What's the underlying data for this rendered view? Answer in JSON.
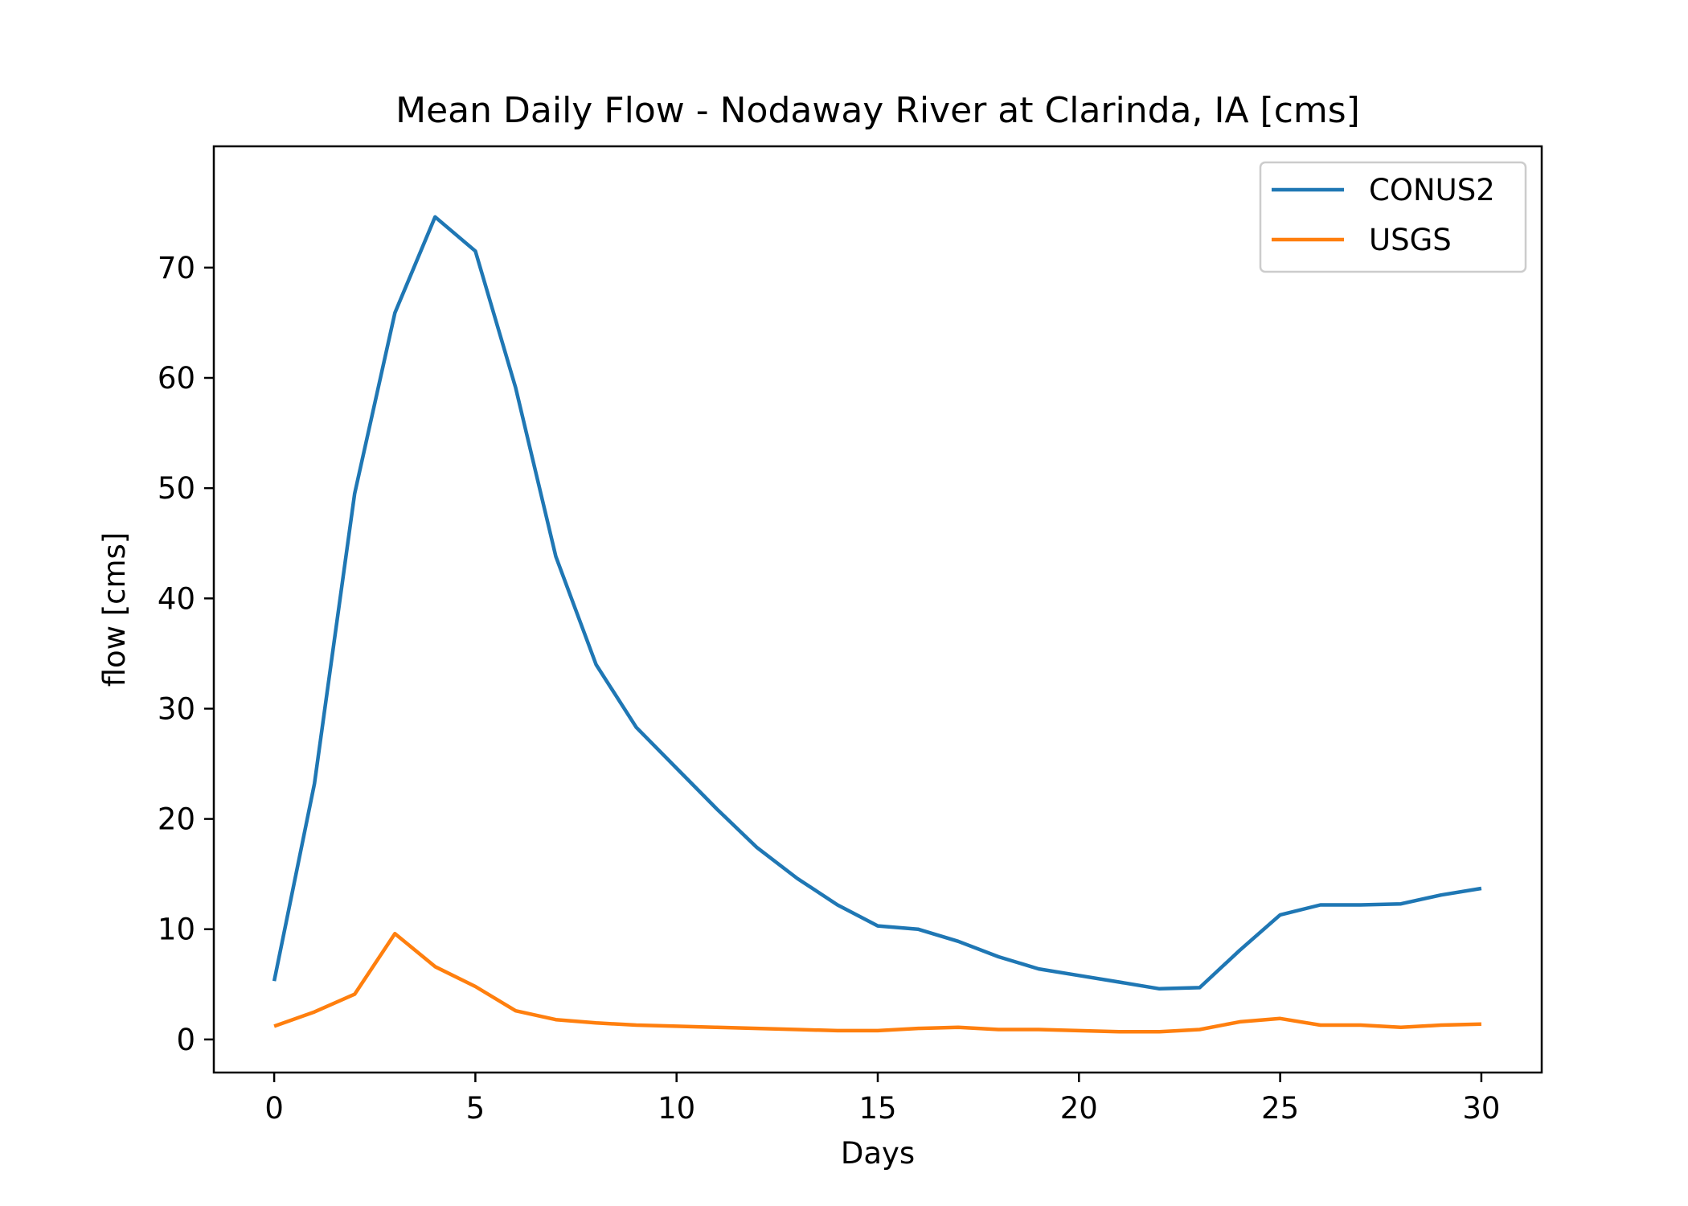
{
  "chart_data": {
    "type": "line",
    "title": "Mean Daily Flow - Nodaway River at Clarinda, IA [cms]",
    "xlabel": "Days",
    "ylabel": "flow [cms]",
    "xlim": [
      -1.5,
      31.5
    ],
    "ylim": [
      -3,
      81
    ],
    "xticks": [
      0,
      5,
      10,
      15,
      20,
      25,
      30
    ],
    "yticks": [
      0,
      10,
      20,
      30,
      40,
      50,
      60,
      70
    ],
    "grid": false,
    "legend_position": "top-right",
    "x": [
      0,
      1,
      2,
      3,
      4,
      5,
      6,
      7,
      8,
      9,
      10,
      11,
      12,
      13,
      14,
      15,
      16,
      17,
      18,
      19,
      20,
      21,
      22,
      23,
      24,
      25,
      26,
      27,
      28,
      29,
      30
    ],
    "series": [
      {
        "name": "CONUS2",
        "color": "#1f77b4",
        "values": [
          5.3,
          23.2,
          49.5,
          65.9,
          74.6,
          71.5,
          59.1,
          43.8,
          34.0,
          28.3,
          24.6,
          20.9,
          17.4,
          14.6,
          12.2,
          10.3,
          10.0,
          8.9,
          7.5,
          6.4,
          5.8,
          5.2,
          4.6,
          4.7,
          8.1,
          11.3,
          12.2,
          12.2,
          12.3,
          13.1,
          13.7
        ]
      },
      {
        "name": "USGS",
        "color": "#ff7f0e",
        "values": [
          1.2,
          2.5,
          4.1,
          9.6,
          6.6,
          4.8,
          2.6,
          1.8,
          1.5,
          1.3,
          1.2,
          1.1,
          1.0,
          0.9,
          0.8,
          0.8,
          1.0,
          1.1,
          0.9,
          0.9,
          0.8,
          0.7,
          0.7,
          0.9,
          1.6,
          1.9,
          1.3,
          1.3,
          1.1,
          1.3,
          1.4
        ]
      }
    ]
  }
}
